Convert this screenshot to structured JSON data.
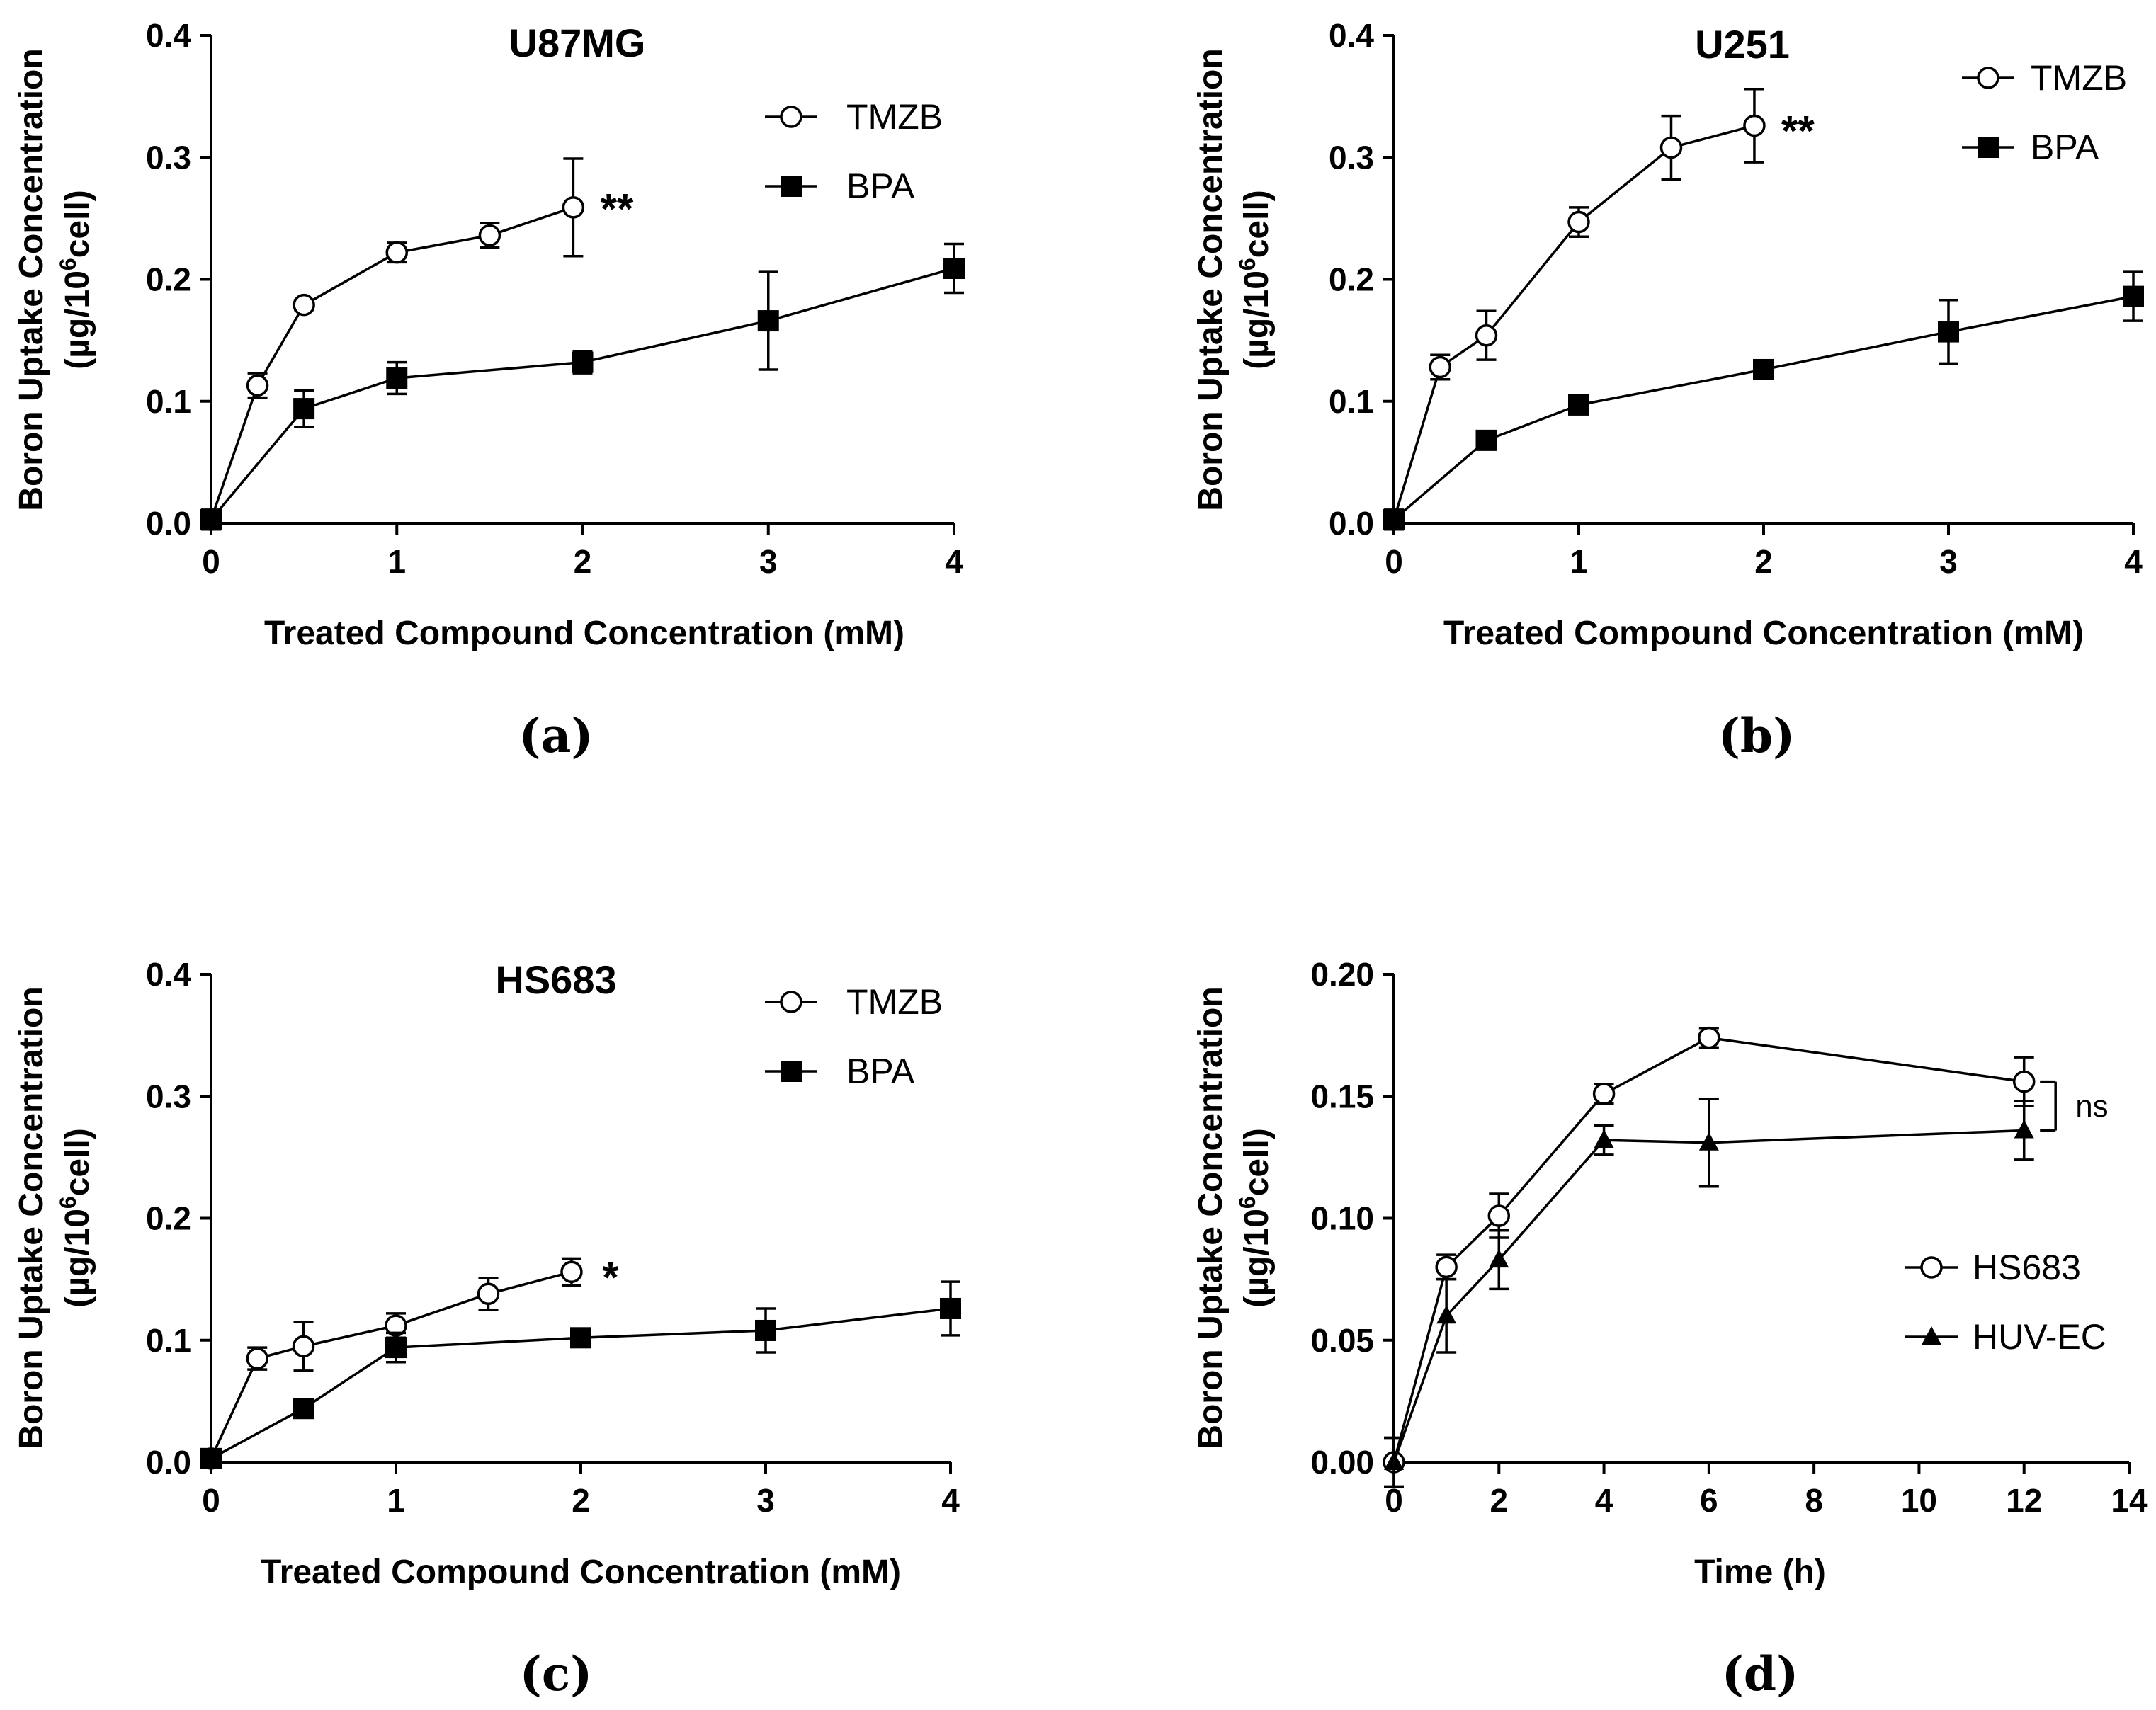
{
  "chart_data": [
    {
      "panel_label": "(a)",
      "type": "line",
      "title": "U87MG",
      "xlabel": "Treated Compound Concentration (mM)",
      "ylabel": "Boron Uptake Concentration",
      "ylabel_unit": {
        "open": "(µg/10",
        "sup": "6",
        "close": "cell)"
      },
      "xlim": [
        0,
        4
      ],
      "ylim": [
        0,
        0.4
      ],
      "xticks": [
        0,
        1,
        2,
        3,
        4
      ],
      "yticks": [
        0.0,
        0.1,
        0.2,
        0.3,
        0.4
      ],
      "xtick_labels": [
        "0",
        "1",
        "2",
        "3",
        "4"
      ],
      "ytick_labels": [
        "0.0",
        "0.1",
        "0.2",
        "0.3",
        "0.4"
      ],
      "legend": [
        "TMZB",
        "BPA"
      ],
      "legend_position": "top-right",
      "series": [
        {
          "name": "TMZB",
          "marker": "open-circle",
          "x": [
            0,
            0.25,
            0.5,
            1,
            1.5,
            1.95
          ],
          "y": [
            0.003,
            0.113,
            0.179,
            0.222,
            0.236,
            0.259
          ],
          "err": [
            0.008,
            0.01,
            0.004,
            0.008,
            0.01,
            0.04
          ]
        },
        {
          "name": "BPA",
          "marker": "filled-square",
          "x": [
            0,
            0.5,
            1,
            2,
            3,
            4
          ],
          "y": [
            0.003,
            0.094,
            0.119,
            0.132,
            0.166,
            0.209
          ],
          "err": [
            0.008,
            0.015,
            0.013,
            0.009,
            0.04,
            0.02
          ]
        }
      ],
      "annotation": {
        "text": "**",
        "x": 2.05,
        "y": 0.262
      }
    },
    {
      "panel_label": "(b)",
      "type": "line",
      "title": "U251",
      "xlabel": "Treated Compound Concentration (mM)",
      "ylabel": "Boron Uptake Concentration",
      "ylabel_unit": {
        "open": "(µg/10",
        "sup": "6",
        "close": "cell)"
      },
      "xlim": [
        0,
        4
      ],
      "ylim": [
        0,
        0.4
      ],
      "xticks": [
        0,
        1,
        2,
        3,
        4
      ],
      "yticks": [
        0.0,
        0.1,
        0.2,
        0.3,
        0.4
      ],
      "xtick_labels": [
        "0",
        "1",
        "2",
        "3",
        "4"
      ],
      "ytick_labels": [
        "0.0",
        "0.1",
        "0.2",
        "0.3",
        "0.4"
      ],
      "legend": [
        "TMZB",
        "BPA"
      ],
      "legend_position": "top-right",
      "series": [
        {
          "name": "TMZB",
          "marker": "open-circle",
          "x": [
            0,
            0.25,
            0.5,
            1,
            1.5,
            1.95
          ],
          "y": [
            0.003,
            0.128,
            0.154,
            0.247,
            0.308,
            0.326
          ],
          "err": [
            0.008,
            0.01,
            0.02,
            0.012,
            0.026,
            0.03
          ]
        },
        {
          "name": "BPA",
          "marker": "filled-square",
          "x": [
            0,
            0.5,
            1,
            2,
            3,
            4
          ],
          "y": [
            0.003,
            0.068,
            0.097,
            0.126,
            0.157,
            0.186
          ],
          "err": [
            0.008,
            0.004,
            0.005,
            0.007,
            0.026,
            0.02
          ]
        }
      ],
      "annotation": {
        "text": "**",
        "x": 2.05,
        "y": 0.326
      }
    },
    {
      "panel_label": "(c)",
      "type": "line",
      "title": "HS683",
      "xlabel": "Treated Compound Concentration (mM)",
      "ylabel": "Boron Uptake Concentration",
      "ylabel_unit": {
        "open": "(µg/10",
        "sup": "6",
        "close": "cell)"
      },
      "xlim": [
        0,
        4
      ],
      "ylim": [
        0,
        0.4
      ],
      "xticks": [
        0,
        1,
        2,
        3,
        4
      ],
      "yticks": [
        0.0,
        0.1,
        0.2,
        0.3,
        0.4
      ],
      "xtick_labels": [
        "0",
        "1",
        "2",
        "3",
        "4"
      ],
      "ytick_labels": [
        "0.0",
        "0.1",
        "0.2",
        "0.3",
        "0.4"
      ],
      "legend": [
        "TMZB",
        "BPA"
      ],
      "legend_position": "top-right",
      "series": [
        {
          "name": "TMZB",
          "marker": "open-circle",
          "x": [
            0,
            0.25,
            0.5,
            1,
            1.5,
            1.95
          ],
          "y": [
            0.003,
            0.085,
            0.095,
            0.112,
            0.138,
            0.156
          ],
          "err": [
            0.006,
            0.009,
            0.02,
            0.01,
            0.013,
            0.011
          ]
        },
        {
          "name": "BPA",
          "marker": "filled-square",
          "x": [
            0,
            0.5,
            1,
            2,
            3,
            4
          ],
          "y": [
            0.003,
            0.044,
            0.094,
            0.102,
            0.108,
            0.126
          ],
          "err": [
            0.006,
            0.004,
            0.012,
            0.006,
            0.018,
            0.022
          ]
        }
      ],
      "annotation": {
        "text": "*",
        "x": 2.07,
        "y": 0.156
      }
    },
    {
      "panel_label": "(d)",
      "type": "line",
      "title": "",
      "xlabel": "Time (h)",
      "ylabel": "Boron Uptake Concentration",
      "ylabel_unit": {
        "open": "(µg/10",
        "sup": "6",
        "close": "cell)"
      },
      "xlim": [
        0,
        14
      ],
      "ylim": [
        0,
        0.2
      ],
      "xticks": [
        0,
        2,
        4,
        6,
        8,
        10,
        12,
        14
      ],
      "yticks": [
        0.0,
        0.05,
        0.1,
        0.15,
        0.2
      ],
      "xtick_labels": [
        "0",
        "2",
        "4",
        "6",
        "8",
        "10",
        "12",
        "14"
      ],
      "ytick_labels": [
        "0.00",
        "0.05",
        "0.10",
        "0.15",
        "0.20"
      ],
      "legend": [
        "HS683",
        "HUV-EC"
      ],
      "legend_position": "lower-right",
      "series": [
        {
          "name": "HS683",
          "marker": "open-circle",
          "x": [
            0,
            1,
            2,
            4,
            6,
            12
          ],
          "y": [
            0.0,
            0.08,
            0.101,
            0.151,
            0.174,
            0.156
          ],
          "err": [
            0.01,
            0.005,
            0.009,
            0.004,
            0.004,
            0.01
          ]
        },
        {
          "name": "HUV-EC",
          "marker": "filled-triangle",
          "x": [
            0,
            1,
            2,
            4,
            6,
            12
          ],
          "y": [
            0.0,
            0.06,
            0.083,
            0.132,
            0.131,
            0.136
          ],
          "err": [
            0.01,
            0.015,
            0.012,
            0.006,
            0.018,
            0.012
          ]
        }
      ],
      "annotation": {
        "text": "ns",
        "bracket": [
          0.136,
          0.156
        ],
        "x": 12.6
      }
    }
  ]
}
